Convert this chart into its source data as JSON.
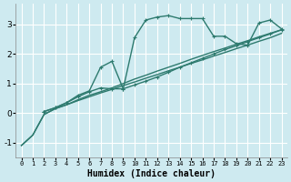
{
  "xlabel": "Humidex (Indice chaleur)",
  "bg_color": "#ceeaf0",
  "grid_color": "#ffffff",
  "line_color": "#2d7a6e",
  "xlim": [
    -0.5,
    23.5
  ],
  "ylim": [
    -1.5,
    3.7
  ],
  "xticks": [
    0,
    1,
    2,
    3,
    4,
    5,
    6,
    7,
    8,
    9,
    10,
    11,
    12,
    13,
    14,
    15,
    16,
    17,
    18,
    19,
    20,
    21,
    22,
    23
  ],
  "yticks": [
    -1,
    0,
    1,
    2,
    3
  ],
  "lines": [
    {
      "x": [
        0,
        1,
        2,
        3,
        4,
        5,
        6,
        7,
        8,
        9,
        10,
        11,
        12,
        13,
        14,
        15,
        16,
        17,
        18,
        19,
        20,
        21,
        22,
        23
      ],
      "y": [
        -1.1,
        -0.75,
        -0.05,
        0.15,
        0.28,
        0.42,
        0.55,
        0.68,
        0.8,
        0.93,
        1.05,
        1.18,
        1.3,
        1.43,
        1.55,
        1.68,
        1.8,
        1.93,
        2.05,
        2.18,
        2.3,
        2.43,
        2.55,
        2.7
      ],
      "marker": null,
      "lw": 1.0
    },
    {
      "x": [
        0,
        1,
        2,
        3,
        4,
        5,
        6,
        7,
        8,
        9,
        10,
        11,
        12,
        13,
        14,
        15,
        16,
        17,
        18,
        19,
        20,
        21,
        22,
        23
      ],
      "y": [
        -1.1,
        -0.75,
        -0.05,
        0.15,
        0.28,
        0.45,
        0.6,
        0.72,
        0.85,
        1.0,
        1.15,
        1.28,
        1.42,
        1.55,
        1.68,
        1.82,
        1.95,
        2.08,
        2.2,
        2.33,
        2.45,
        2.58,
        2.7,
        2.82
      ],
      "marker": null,
      "lw": 1.0
    },
    {
      "x": [
        2,
        3,
        4,
        5,
        6,
        7,
        8,
        9,
        10,
        11,
        12,
        13,
        14,
        15,
        16,
        17,
        18,
        19,
        20,
        21,
        22,
        23
      ],
      "y": [
        0.05,
        0.18,
        0.35,
        0.55,
        0.72,
        0.85,
        0.82,
        0.82,
        2.55,
        3.15,
        3.25,
        3.3,
        3.2,
        3.2,
        3.2,
        2.6,
        2.6,
        2.35,
        2.3,
        3.05,
        3.15,
        2.85
      ],
      "marker": "+",
      "lw": 1.0
    },
    {
      "x": [
        2,
        3,
        4,
        5,
        6,
        7,
        8,
        9,
        10,
        11,
        12,
        13,
        14,
        15,
        16,
        17,
        18,
        19,
        20,
        21,
        22,
        23
      ],
      "y": [
        0.05,
        0.18,
        0.35,
        0.6,
        0.75,
        1.55,
        1.75,
        0.82,
        0.95,
        1.08,
        1.22,
        1.38,
        1.55,
        1.7,
        1.85,
        2.0,
        2.15,
        2.28,
        2.42,
        2.55,
        2.68,
        2.82
      ],
      "marker": "+",
      "lw": 1.0
    }
  ]
}
